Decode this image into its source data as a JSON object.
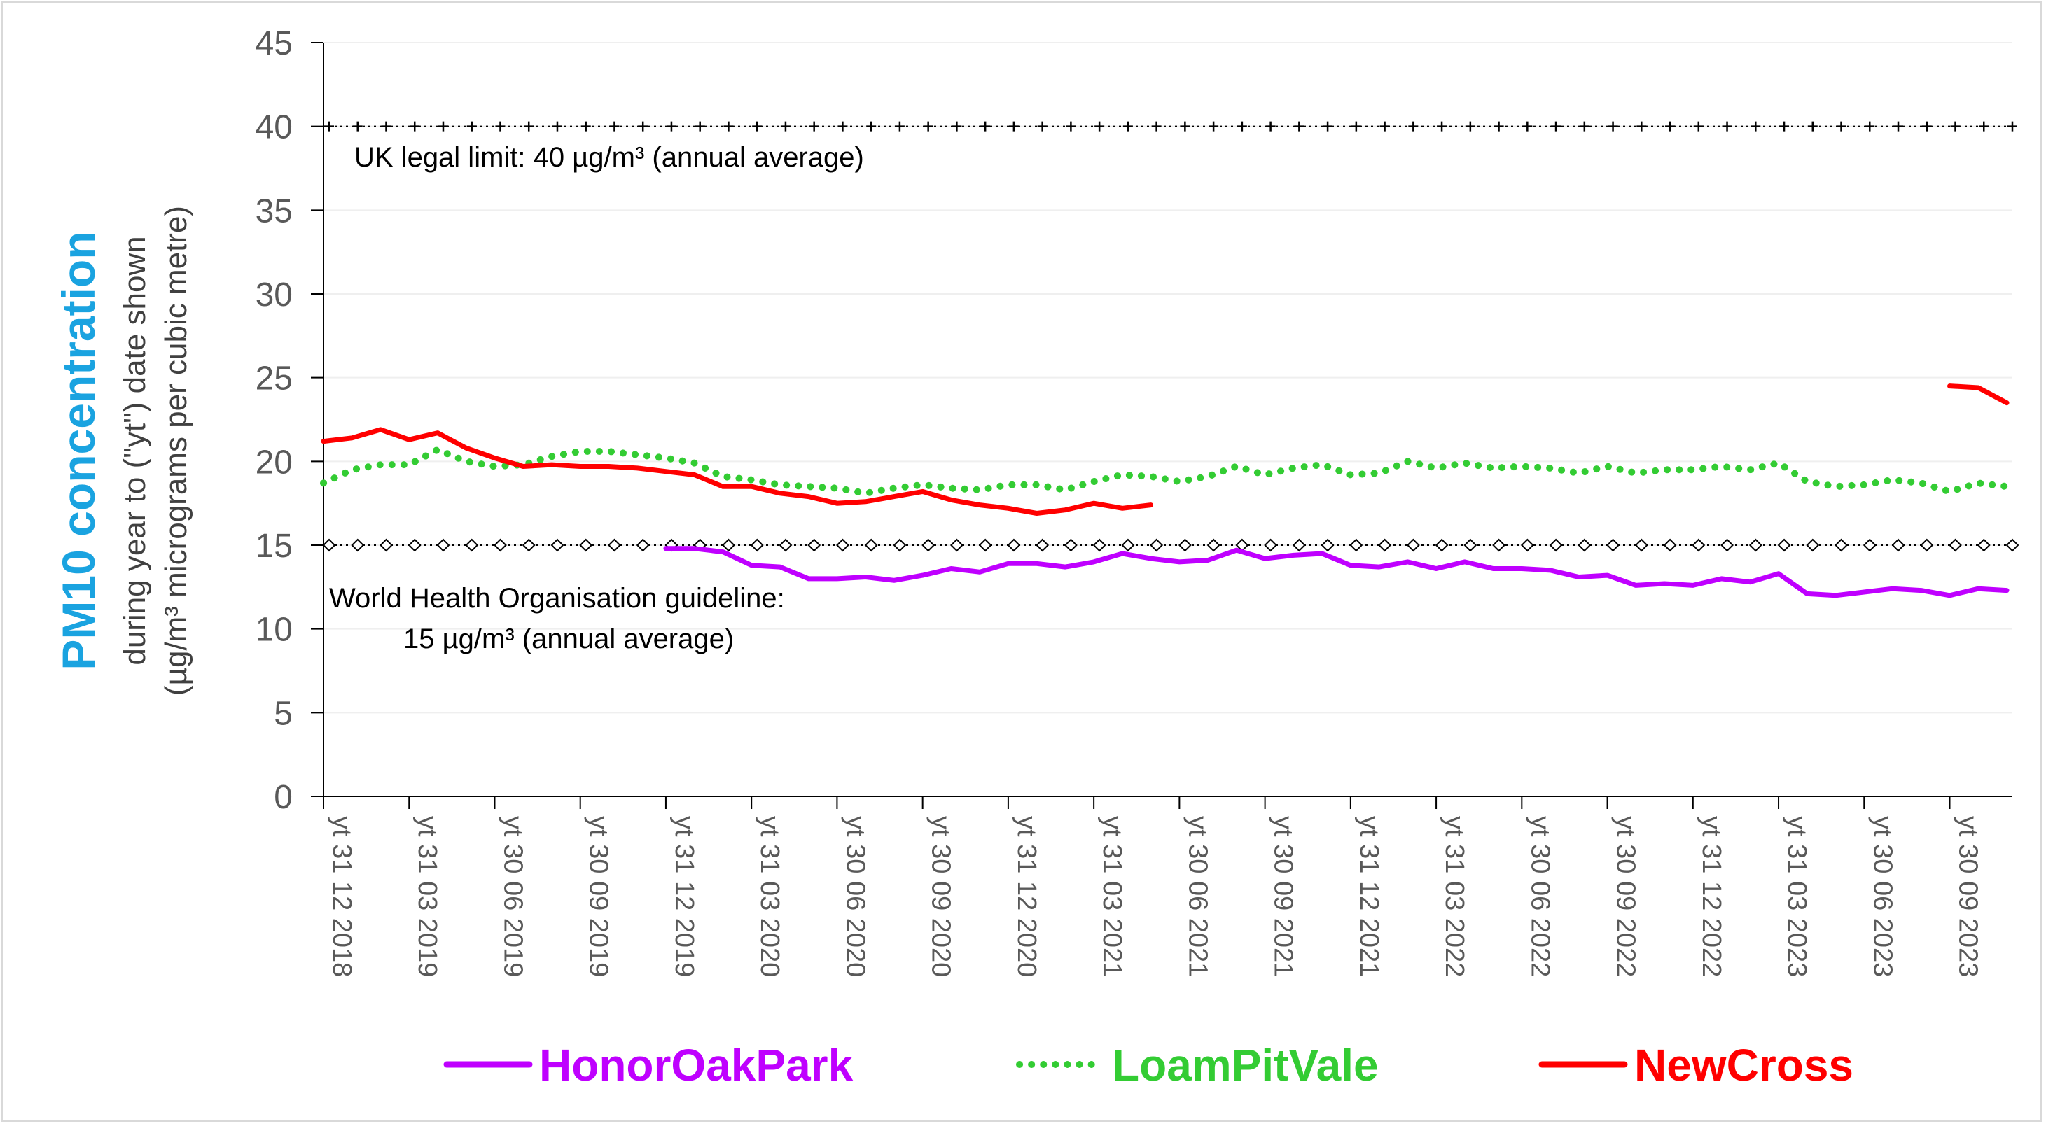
{
  "chart_data": {
    "type": "line",
    "ytitle": {
      "main": "PM10 concentration",
      "sub1": "during year to (\"yt\") date shown",
      "sub2": "(µg/m³ micrograms per cubic metre)"
    },
    "ylim": [
      0,
      45
    ],
    "yticks": [
      0,
      5,
      10,
      15,
      20,
      25,
      30,
      35,
      40,
      45
    ],
    "x_count": 60,
    "xtick_labels": [
      {
        "label": "yt 31 12 2018",
        "index": 0
      },
      {
        "label": "yt 31 03 2019",
        "index": 3
      },
      {
        "label": "yt 30 06 2019",
        "index": 6
      },
      {
        "label": "yt 30 09 2019",
        "index": 9
      },
      {
        "label": "yt 31 12 2019",
        "index": 12
      },
      {
        "label": "yt 31 03 2020",
        "index": 15
      },
      {
        "label": "yt 30 06 2020",
        "index": 18
      },
      {
        "label": "yt 30 09 2020",
        "index": 21
      },
      {
        "label": "yt 31 12 2020",
        "index": 24
      },
      {
        "label": "yt 31 03 2021",
        "index": 27
      },
      {
        "label": "yt 30 06 2021",
        "index": 30
      },
      {
        "label": "yt 30 09 2021",
        "index": 33
      },
      {
        "label": "yt 31 12 2021",
        "index": 36
      },
      {
        "label": "yt 31 03 2022",
        "index": 39
      },
      {
        "label": "yt 30 06 2022",
        "index": 42
      },
      {
        "label": "yt 30 09 2022",
        "index": 45
      },
      {
        "label": "yt 31 12 2022",
        "index": 48
      },
      {
        "label": "yt 31 03 2023",
        "index": 51
      },
      {
        "label": "yt 30 06 2023",
        "index": 54
      },
      {
        "label": "yt 30 09 2023",
        "index": 57
      }
    ],
    "series": [
      {
        "name": "HonorOakPark",
        "color": "#bf00ff",
        "style": "solid",
        "values": [
          null,
          null,
          null,
          null,
          null,
          null,
          null,
          null,
          null,
          null,
          null,
          null,
          14.8,
          14.8,
          14.6,
          13.8,
          13.7,
          13.0,
          13.0,
          13.1,
          12.9,
          13.2,
          13.6,
          13.4,
          13.9,
          13.9,
          13.7,
          14.0,
          14.5,
          14.2,
          14.0,
          14.1,
          14.7,
          14.2,
          14.4,
          14.5,
          13.8,
          13.7,
          14.0,
          13.6,
          14.0,
          13.6,
          13.6,
          13.5,
          13.1,
          13.2,
          12.6,
          12.7,
          12.6,
          13.0,
          12.8,
          13.3,
          12.1,
          12.0,
          12.2,
          12.4,
          12.3,
          12.0,
          12.4,
          12.3
        ]
      },
      {
        "name": "LoamPitVale",
        "color": "#33cc33",
        "style": "dotted",
        "values": [
          18.7,
          19.5,
          19.8,
          19.8,
          20.7,
          20.0,
          19.7,
          19.8,
          20.3,
          20.6,
          20.6,
          20.4,
          20.2,
          19.9,
          19.1,
          18.9,
          18.6,
          18.5,
          18.4,
          18.1,
          18.4,
          18.6,
          18.4,
          18.3,
          18.6,
          18.6,
          18.3,
          18.8,
          19.2,
          19.1,
          18.8,
          19.1,
          19.7,
          19.2,
          19.6,
          19.8,
          19.2,
          19.3,
          20.0,
          19.6,
          19.9,
          19.6,
          19.7,
          19.6,
          19.3,
          19.7,
          19.3,
          19.5,
          19.5,
          19.7,
          19.5,
          19.9,
          18.8,
          18.5,
          18.6,
          18.9,
          18.7,
          18.2,
          18.7,
          18.5
        ]
      },
      {
        "name": "NewCross",
        "color": "#ff0000",
        "style": "solid",
        "values": [
          21.2,
          21.4,
          21.9,
          21.3,
          21.7,
          20.8,
          20.2,
          19.7,
          19.8,
          19.7,
          19.7,
          19.6,
          19.4,
          19.2,
          18.5,
          18.5,
          18.1,
          17.9,
          17.5,
          17.6,
          17.9,
          18.2,
          17.7,
          17.4,
          17.2,
          16.9,
          17.1,
          17.5,
          17.2,
          17.4,
          null,
          null,
          null,
          null,
          null,
          null,
          null,
          null,
          null,
          null,
          null,
          null,
          null,
          null,
          null,
          null,
          null,
          null,
          null,
          null,
          null,
          null,
          null,
          null,
          null,
          null,
          null,
          24.5,
          24.4,
          23.5
        ]
      }
    ],
    "reference_lines": [
      {
        "value": 40,
        "marker": "plus",
        "label": "UK legal limit: 40 µg/m³ (annual average)"
      },
      {
        "value": 15,
        "marker": "diamond",
        "label_line1": "World Health Organisation guideline:",
        "label_line2": "15 µg/m³ (annual average)"
      }
    ],
    "title_color": "#1aa3e0",
    "legend_position": "bottom",
    "grid": true
  }
}
